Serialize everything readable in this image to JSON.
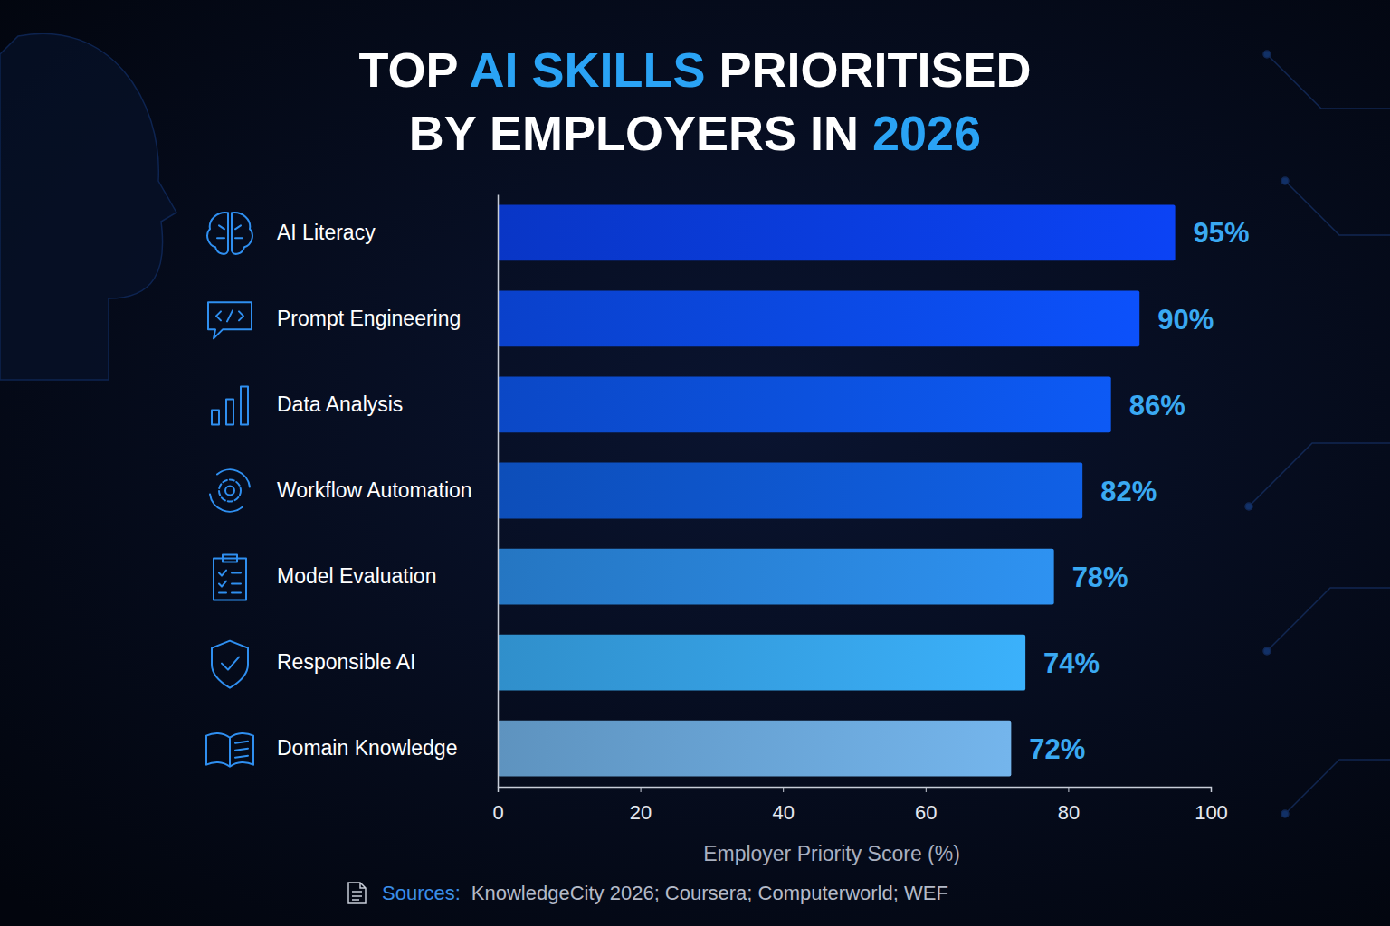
{
  "chart_data": {
    "type": "bar",
    "orientation": "horizontal",
    "title": "TOP AI SKILLS PRIORITISED BY EMPLOYERS IN 2026",
    "x_label": "Employer Priority Score (%)",
    "categories": [
      "AI Literacy",
      "Prompt Engineering",
      "Data Analysis",
      "Workflow Automation",
      "Model Evaluation",
      "Responsible AI",
      "Domain Knowledge"
    ],
    "values": [
      95,
      90,
      86,
      82,
      78,
      74,
      72
    ],
    "value_labels": [
      "95%",
      "90%",
      "86%",
      "82%",
      "78%",
      "74%",
      "72%"
    ],
    "colors": [
      "#0a3de0",
      "#0b4ae6",
      "#0c52e0",
      "#0f58d2",
      "#2a86dc",
      "#36a2e6",
      "#6aa6d8"
    ],
    "xlim": [
      0,
      100
    ],
    "xticks": [
      0,
      20,
      40,
      60,
      80,
      100
    ],
    "grid": false,
    "data_labels": true,
    "source_label": "Sources:",
    "source": "KnowledgeCity 2026; Coursera; Computerworld; WEF"
  }
}
